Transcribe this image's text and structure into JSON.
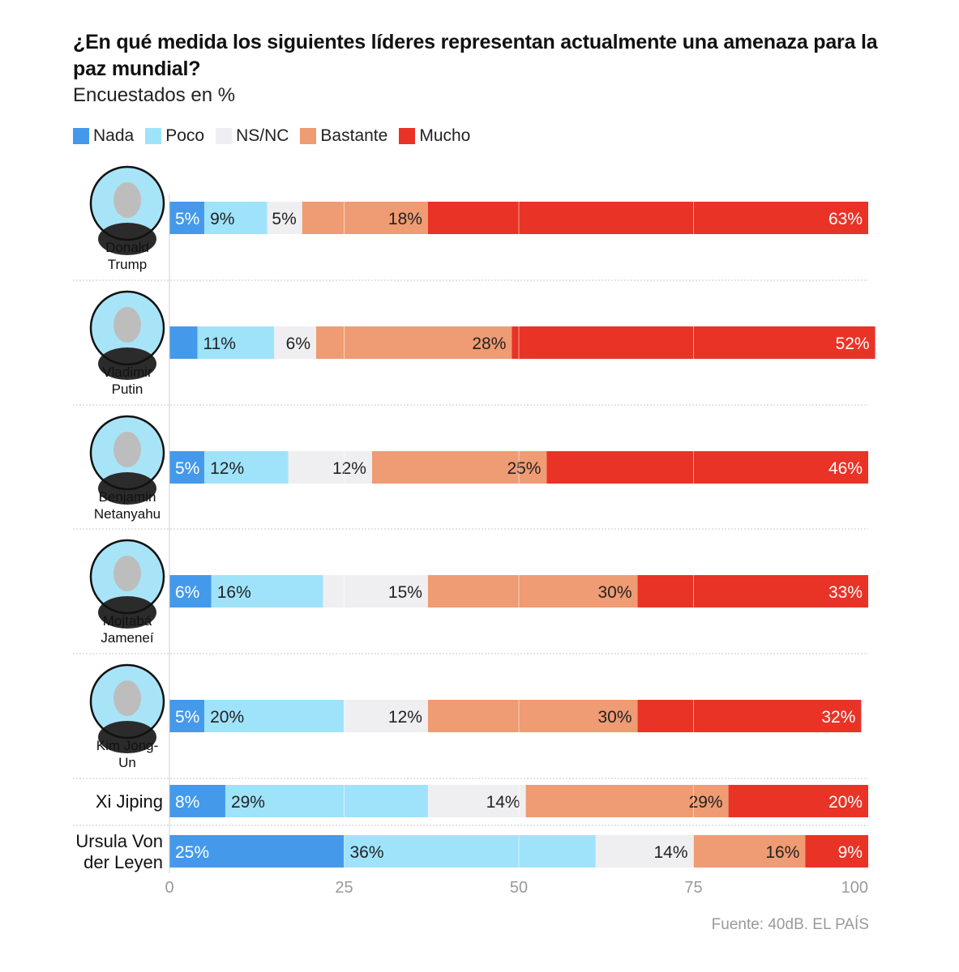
{
  "title": "¿En qué medida los siguientes líderes representan actualmente una amenaza para la paz mundial?",
  "subtitle": "Encuestados en %",
  "source": "Fuente: 40dB. EL PAÍS",
  "colors": {
    "Nada": "#4499ea",
    "Poco": "#9fe3fb",
    "NS/NC": "#efeff1",
    "Bastante": "#ef9b73",
    "Mucho": "#e83326"
  },
  "chart_data": {
    "type": "bar",
    "orientation": "horizontal",
    "stacked": true,
    "title": "¿En qué medida los siguientes líderes representan actualmente una amenaza para la paz mundial?",
    "subtitle": "Encuestados en %",
    "xlim": [
      0,
      100
    ],
    "xticks": [
      0,
      25,
      50,
      75,
      100
    ],
    "grid": true,
    "legend_position": "top-left",
    "categories": [
      "Donald Trump",
      "Vladimir Putin",
      "Benjamin Netanyahu",
      "Mojtabá Jameneí",
      "Kim Jong-Un",
      "Xi Jiping",
      "Ursula Von der Leyen"
    ],
    "label_lines": [
      [
        "Donald",
        "Trump"
      ],
      [
        "Vladimir",
        "Putin"
      ],
      [
        "Benjamin",
        "Netanyahu"
      ],
      [
        "Mojtabá",
        "Jameneí"
      ],
      [
        "Kim Jong-",
        "Un"
      ],
      [
        "Xi Jiping"
      ],
      [
        "Ursula Von",
        "der Leyen"
      ]
    ],
    "series": [
      {
        "name": "Nada",
        "values": [
          5,
          4,
          5,
          6,
          5,
          8,
          25
        ],
        "labels": [
          "5%",
          "",
          "5%",
          "6%",
          "5%",
          "8%",
          "25%"
        ]
      },
      {
        "name": "Poco",
        "values": [
          9,
          11,
          12,
          16,
          20,
          29,
          36
        ],
        "labels": [
          "9%",
          "11%",
          "12%",
          "16%",
          "20%",
          "29%",
          "36%"
        ]
      },
      {
        "name": "NS/NC",
        "values": [
          5,
          6,
          12,
          15,
          12,
          14,
          14
        ],
        "labels": [
          "5%",
          "6%",
          "12%",
          "15%",
          "12%",
          "14%",
          "14%"
        ]
      },
      {
        "name": "Bastante",
        "values": [
          18,
          28,
          25,
          30,
          30,
          29,
          16
        ],
        "labels": [
          "18%",
          "28%",
          "25%",
          "30%",
          "30%",
          "29%",
          "16%"
        ]
      },
      {
        "name": "Mucho",
        "values": [
          63,
          52,
          46,
          33,
          32,
          20,
          9
        ],
        "labels": [
          "63%",
          "52%",
          "46%",
          "33%",
          "32%",
          "20%",
          "9%"
        ]
      }
    ]
  }
}
